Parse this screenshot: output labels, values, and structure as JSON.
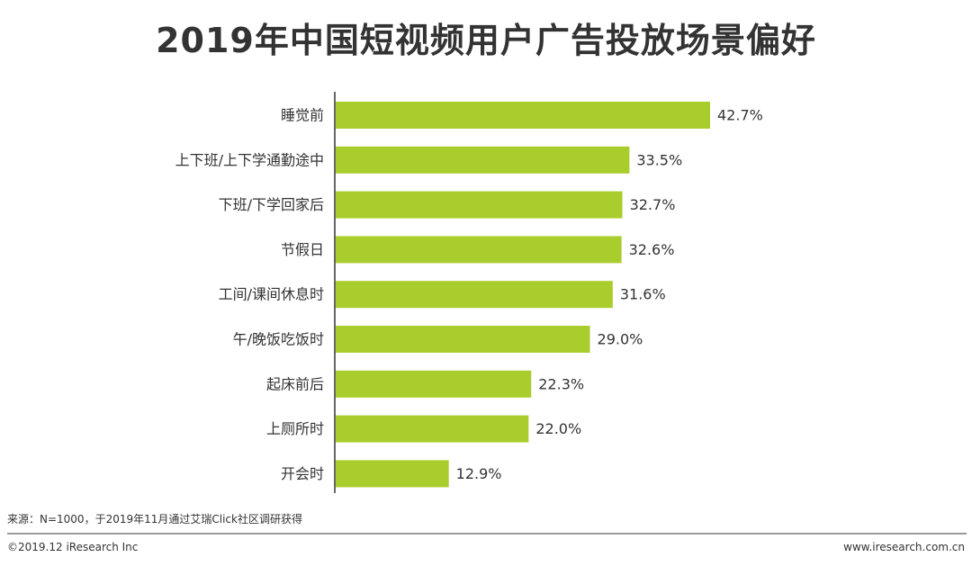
{
  "title": "2019年中国短视频用户广告投放场景偏好",
  "footer": {
    "source": "来源：N=1000，于2019年11月通过艾瑞Click社区调研获得",
    "copyright": "©2019.12 iResearch Inc",
    "website": "www.iresearch.com.cn"
  },
  "colors": {
    "bar": "#aacd2e",
    "axis": "#333333",
    "text": "#333333"
  },
  "chart_data": {
    "type": "bar",
    "orientation": "horizontal",
    "categories": [
      "睡觉前",
      "上下班/上下学通勤途中",
      "下班/下学回家后",
      "节假日",
      "工间/课间休息时",
      "午/晚饭吃饭时",
      "起床前后",
      "上厕所时",
      "开会时"
    ],
    "values": [
      42.7,
      33.5,
      32.7,
      32.6,
      31.6,
      29.0,
      22.3,
      22.0,
      12.9
    ],
    "value_labels": [
      "42.7%",
      "33.5%",
      "32.7%",
      "32.6%",
      "31.6%",
      "29.0%",
      "22.3%",
      "22.0%",
      "12.9%"
    ],
    "unit": "%",
    "xlim": [
      0,
      42.7
    ],
    "grid": false,
    "legend": "none"
  }
}
